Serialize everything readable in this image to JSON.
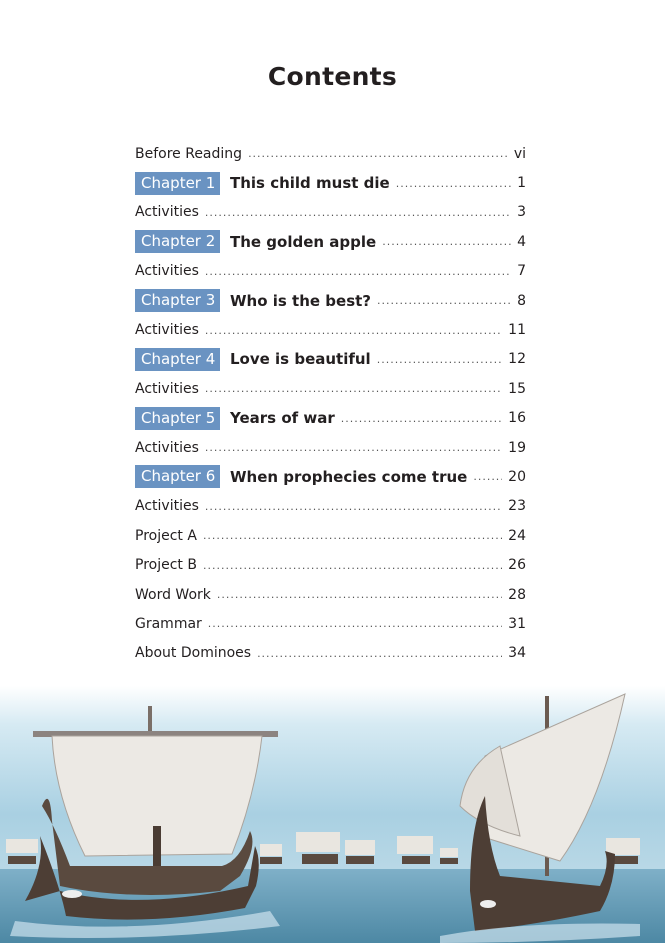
{
  "page_title": "Contents",
  "entries": [
    {
      "label": "Before Reading",
      "page": "vi"
    },
    {
      "chapter": "Chapter 1",
      "label": "This child must die",
      "page": "1"
    },
    {
      "label": "Activities",
      "page": "3"
    },
    {
      "chapter": "Chapter 2",
      "label": "The golden apple",
      "page": "4"
    },
    {
      "label": "Activities",
      "page": "7"
    },
    {
      "chapter": "Chapter 3",
      "label": "Who is the best?",
      "page": "8"
    },
    {
      "label": "Activities",
      "page": "11"
    },
    {
      "chapter": "Chapter 4",
      "label": "Love is beautiful",
      "page": "12"
    },
    {
      "label": "Activities",
      "page": "15"
    },
    {
      "chapter": "Chapter 5",
      "label": "Years of war",
      "page": "16"
    },
    {
      "label": "Activities",
      "page": "19"
    },
    {
      "chapter": "Chapter 6",
      "label": "When prophecies come true",
      "page": "20"
    },
    {
      "label": "Activities",
      "page": "23"
    },
    {
      "label": "Project A",
      "page": "24"
    },
    {
      "label": "Project B",
      "page": "26"
    },
    {
      "label": "Word Work",
      "page": "28"
    },
    {
      "label": "Grammar",
      "page": "31"
    },
    {
      "label": "About Dominoes",
      "page": "34"
    }
  ],
  "colors": {
    "chapter_badge": "#6a93c2",
    "sea": "#5d93ad",
    "sky": "#a9d0e2"
  },
  "illustration": "ancient-greek-ships-at-sea"
}
